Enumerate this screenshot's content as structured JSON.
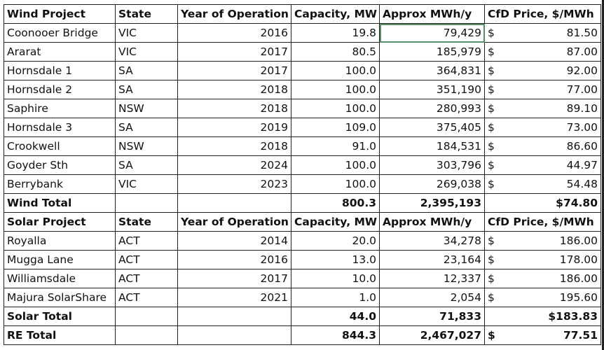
{
  "wind": {
    "headers": [
      "Wind Project",
      "State",
      "Year of Operation",
      "Capacity, MW",
      "Approx MWh/y",
      "CfD Price, $/MWh"
    ],
    "rows": [
      {
        "name": "Coonooer Bridge",
        "state": "VIC",
        "year": "2016",
        "cap": "19.8",
        "mwh": "79,429",
        "cur": "$",
        "price": "81.50"
      },
      {
        "name": "Ararat",
        "state": "VIC",
        "year": "2017",
        "cap": "80.5",
        "mwh": "185,979",
        "cur": "$",
        "price": "87.00"
      },
      {
        "name": "Hornsdale 1",
        "state": "SA",
        "year": "2017",
        "cap": "100.0",
        "mwh": "364,831",
        "cur": "$",
        "price": "92.00"
      },
      {
        "name": "Hornsdale 2",
        "state": "SA",
        "year": "2018",
        "cap": "100.0",
        "mwh": "351,190",
        "cur": "$",
        "price": "77.00"
      },
      {
        "name": "Saphire",
        "state": "NSW",
        "year": "2018",
        "cap": "100.0",
        "mwh": "280,993",
        "cur": "$",
        "price": "89.10"
      },
      {
        "name": "Hornsdale 3",
        "state": "SA",
        "year": "2019",
        "cap": "109.0",
        "mwh": "375,405",
        "cur": "$",
        "price": "73.00"
      },
      {
        "name": "Crookwell",
        "state": "NSW",
        "year": "2018",
        "cap": "91.0",
        "mwh": "184,531",
        "cur": "$",
        "price": "86.60"
      },
      {
        "name": "Goyder Sth",
        "state": "SA",
        "year": "2024",
        "cap": "100.0",
        "mwh": "303,796",
        "cur": "$",
        "price": "44.97"
      },
      {
        "name": "Berrybank",
        "state": "VIC",
        "year": "2023",
        "cap": "100.0",
        "mwh": "269,038",
        "cur": "$",
        "price": "54.48"
      }
    ],
    "total": {
      "label": "Wind Total",
      "cap": "800.3",
      "mwh": "2,395,193",
      "price": "$74.80"
    }
  },
  "solar": {
    "headers": [
      "Solar Project",
      "State",
      "Year of Operation",
      "Capacity, MW",
      "Approx MWh/y",
      "CfD Price, $/MWh"
    ],
    "rows": [
      {
        "name": "Royalla",
        "state": "ACT",
        "year": "2014",
        "cap": "20.0",
        "mwh": "34,278",
        "cur": "$",
        "price": "186.00"
      },
      {
        "name": "Mugga Lane",
        "state": "ACT",
        "year": "2016",
        "cap": "13.0",
        "mwh": "23,164",
        "cur": "$",
        "price": "178.00"
      },
      {
        "name": "Williamsdale",
        "state": "ACT",
        "year": "2017",
        "cap": "10.0",
        "mwh": "12,337",
        "cur": "$",
        "price": "186.00"
      },
      {
        "name": "Majura SolarShare",
        "state": "ACT",
        "year": "2021",
        "cap": "1.0",
        "mwh": "2,054",
        "cur": "$",
        "price": "195.60"
      }
    ],
    "total": {
      "label": "Solar Total",
      "cap": "44.0",
      "mwh": "71,833",
      "price": "$183.83"
    }
  },
  "re_total": {
    "label": "RE Total",
    "cap": "844.3",
    "mwh": "2,467,027",
    "cur": "$",
    "price": "77.51"
  }
}
